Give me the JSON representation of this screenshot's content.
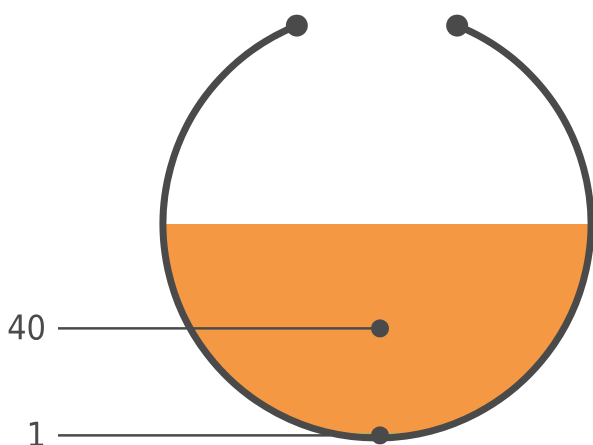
{
  "chart_data": {
    "type": "area",
    "title": "",
    "xlabel": "",
    "ylabel": "",
    "series": [
      {
        "label": "1",
        "value": 1,
        "color": "#76c47a"
      },
      {
        "label": "40",
        "value": 40,
        "color": "#f59843"
      }
    ],
    "colors": {
      "outline": "#4a4a4a",
      "leader": "#4a4a4a",
      "label": "#4a4a4a",
      "background": "#ffffff"
    }
  }
}
